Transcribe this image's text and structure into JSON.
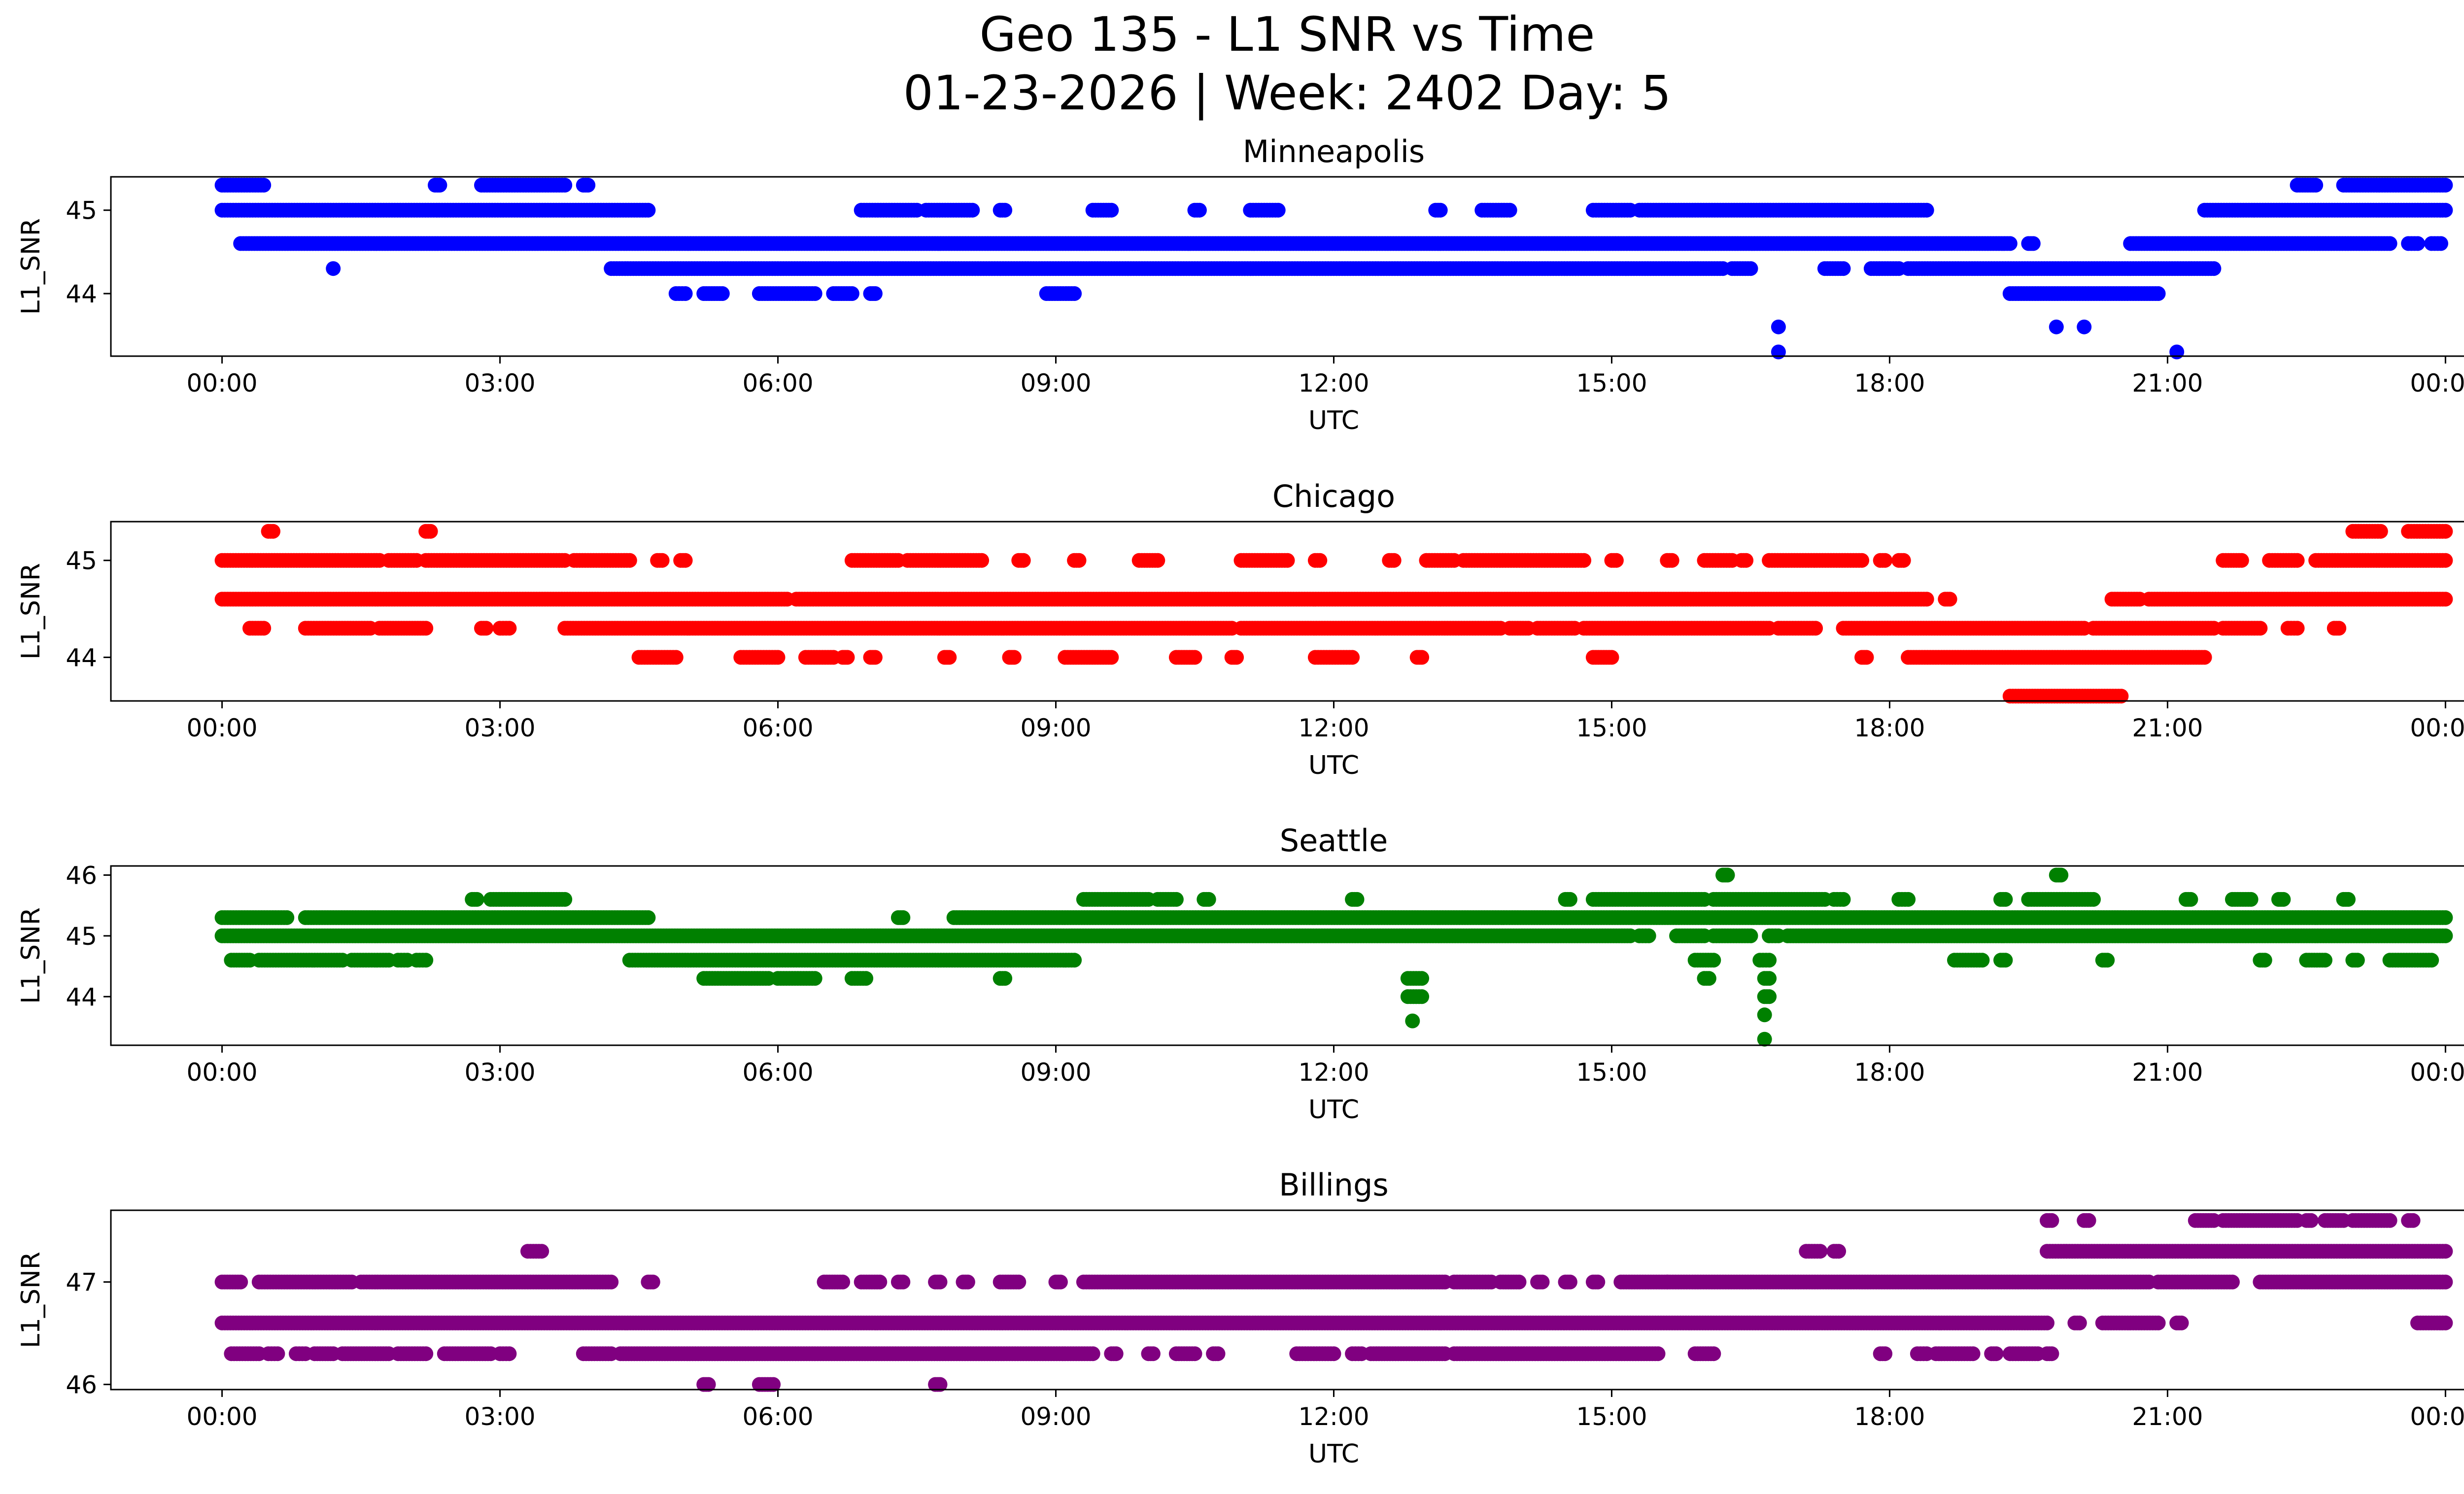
{
  "title": {
    "line1": "Geo 135 - L1 SNR vs Time",
    "line2": "01-23-2026 | Week: 2402 Day: 5"
  },
  "chart_data": [
    {
      "type": "scatter",
      "title": "Minneapolis",
      "xlabel": "UTC",
      "ylabel": "L1_SNR",
      "color": "#0000ff",
      "xlim": [
        -1.2,
        25.2
      ],
      "ylim": [
        43.25,
        45.4
      ],
      "xticks": [
        "00:00",
        "03:00",
        "06:00",
        "09:00",
        "12:00",
        "15:00",
        "18:00",
        "21:00",
        "00:00"
      ],
      "yticks": [
        44,
        45
      ],
      "runs": [
        {
          "y": 45.3,
          "s": [
            [
              0,
              0.45
            ],
            [
              2.3,
              2.35
            ],
            [
              2.8,
              3.7
            ],
            [
              3.9,
              3.95
            ],
            [
              22.4,
              22.6
            ],
            [
              22.9,
              24
            ]
          ]
        },
        {
          "y": 45.0,
          "s": [
            [
              0,
              4.6
            ],
            [
              6.9,
              7.5
            ],
            [
              7.6,
              8.1
            ],
            [
              8.4,
              8.45
            ],
            [
              9.4,
              9.6
            ],
            [
              10.5,
              10.55
            ],
            [
              11.1,
              11.4
            ],
            [
              13.1,
              13.15
            ],
            [
              13.6,
              13.9
            ],
            [
              14.8,
              15.2
            ],
            [
              15.3,
              18.4
            ],
            [
              21.4,
              24
            ]
          ]
        },
        {
          "y": 44.6,
          "s": [
            [
              0.2,
              19.3
            ],
            [
              19.5,
              19.55
            ],
            [
              20.6,
              23.4
            ],
            [
              23.6,
              23.7
            ],
            [
              23.85,
              23.95
            ]
          ]
        },
        {
          "y": 44.3,
          "s": [
            [
              4.2,
              16.2
            ],
            [
              16.3,
              16.5
            ],
            [
              17.3,
              17.5
            ],
            [
              17.8,
              18.1
            ],
            [
              18.2,
              21.5
            ]
          ]
        },
        {
          "y": 44.0,
          "s": [
            [
              4.9,
              5.0
            ],
            [
              5.2,
              5.4
            ],
            [
              5.8,
              6.4
            ],
            [
              6.6,
              6.8
            ],
            [
              7.0,
              7.05
            ],
            [
              8.9,
              9.2
            ],
            [
              19.3,
              20.9
            ]
          ]
        }
      ],
      "points": [
        [
          1.2,
          44.3
        ],
        [
          16.8,
          43.6
        ],
        [
          16.8,
          43.3
        ],
        [
          19.8,
          43.6
        ],
        [
          20.1,
          43.6
        ],
        [
          21.1,
          43.3
        ]
      ]
    },
    {
      "type": "scatter",
      "title": "Chicago",
      "xlabel": "UTC",
      "ylabel": "L1_SNR",
      "color": "#ff0000",
      "xlim": [
        -1.2,
        25.2
      ],
      "ylim": [
        43.55,
        45.4
      ],
      "xticks": [
        "00:00",
        "03:00",
        "06:00",
        "09:00",
        "12:00",
        "15:00",
        "18:00",
        "21:00",
        "00:00"
      ],
      "yticks": [
        44,
        45
      ],
      "runs": [
        {
          "y": 45.3,
          "s": [
            [
              0.5,
              0.55
            ],
            [
              2.2,
              2.25
            ],
            [
              23.0,
              23.3
            ],
            [
              23.6,
              24
            ]
          ]
        },
        {
          "y": 45.0,
          "s": [
            [
              0,
              1.7
            ],
            [
              1.8,
              2.1
            ],
            [
              2.2,
              3.7
            ],
            [
              3.8,
              4.4
            ],
            [
              4.7,
              4.75
            ],
            [
              4.95,
              5.0
            ],
            [
              6.8,
              7.3
            ],
            [
              7.4,
              8.2
            ],
            [
              8.6,
              8.65
            ],
            [
              9.2,
              9.25
            ],
            [
              9.9,
              10.1
            ],
            [
              11.0,
              11.5
            ],
            [
              11.8,
              11.85
            ],
            [
              12.6,
              12.65
            ],
            [
              13.0,
              13.3
            ],
            [
              13.4,
              14.7
            ],
            [
              15.0,
              15.05
            ],
            [
              15.6,
              15.65
            ],
            [
              16.0,
              16.3
            ],
            [
              16.4,
              16.45
            ],
            [
              16.7,
              17.7
            ],
            [
              17.9,
              17.95
            ],
            [
              18.1,
              18.15
            ],
            [
              21.6,
              21.8
            ],
            [
              22.1,
              22.4
            ],
            [
              22.6,
              24
            ]
          ]
        },
        {
          "y": 44.6,
          "s": [
            [
              0,
              6.1
            ],
            [
              6.2,
              18.4
            ],
            [
              18.6,
              18.65
            ],
            [
              20.4,
              20.7
            ],
            [
              20.8,
              24
            ]
          ]
        },
        {
          "y": 44.3,
          "s": [
            [
              0.3,
              0.45
            ],
            [
              0.9,
              1.6
            ],
            [
              1.7,
              2.2
            ],
            [
              2.8,
              2.85
            ],
            [
              3.0,
              3.1
            ],
            [
              3.7,
              10.9
            ],
            [
              11.0,
              13.8
            ],
            [
              13.9,
              14.1
            ],
            [
              14.2,
              14.6
            ],
            [
              14.7,
              16.7
            ],
            [
              16.8,
              17.2
            ],
            [
              17.5,
              20.1
            ],
            [
              20.2,
              21.5
            ],
            [
              21.6,
              22.0
            ],
            [
              22.3,
              22.4
            ],
            [
              22.8,
              22.85
            ]
          ]
        },
        {
          "y": 44.0,
          "s": [
            [
              4.5,
              4.9
            ],
            [
              5.6,
              6.0
            ],
            [
              6.3,
              6.6
            ],
            [
              6.7,
              6.75
            ],
            [
              7.0,
              7.05
            ],
            [
              7.8,
              7.85
            ],
            [
              8.5,
              8.55
            ],
            [
              9.1,
              9.6
            ],
            [
              10.3,
              10.5
            ],
            [
              10.9,
              10.95
            ],
            [
              11.8,
              12.2
            ],
            [
              12.9,
              12.95
            ],
            [
              14.8,
              15.0
            ],
            [
              17.7,
              17.75
            ],
            [
              18.2,
              21.4
            ]
          ]
        },
        {
          "y": 43.6,
          "s": [
            [
              19.3,
              20.5
            ]
          ]
        }
      ],
      "points": []
    },
    {
      "type": "scatter",
      "title": "Seattle",
      "xlabel": "UTC",
      "ylabel": "L1_SNR",
      "color": "#008000",
      "xlim": [
        -1.2,
        25.2
      ],
      "ylim": [
        43.2,
        46.15
      ],
      "xticks": [
        "00:00",
        "03:00",
        "06:00",
        "09:00",
        "12:00",
        "15:00",
        "18:00",
        "21:00",
        "00:00"
      ],
      "yticks": [
        44,
        45,
        46
      ],
      "runs": [
        {
          "y": 46.0,
          "s": [
            [
              16.2,
              16.25
            ],
            [
              19.8,
              19.85
            ]
          ]
        },
        {
          "y": 45.6,
          "s": [
            [
              2.7,
              2.75
            ],
            [
              2.9,
              3.7
            ],
            [
              9.3,
              10.0
            ],
            [
              10.1,
              10.3
            ],
            [
              10.6,
              10.65
            ],
            [
              12.2,
              12.25
            ],
            [
              14.5,
              14.55
            ],
            [
              14.8,
              16.0
            ],
            [
              16.1,
              17.3
            ],
            [
              17.4,
              17.5
            ],
            [
              18.1,
              18.2
            ],
            [
              19.2,
              19.25
            ],
            [
              19.5,
              20.2
            ],
            [
              21.2,
              21.25
            ],
            [
              21.7,
              21.9
            ],
            [
              22.2,
              22.25
            ],
            [
              22.9,
              22.95
            ]
          ]
        },
        {
          "y": 45.3,
          "s": [
            [
              0,
              0.7
            ],
            [
              0.9,
              4.6
            ],
            [
              7.3,
              7.35
            ],
            [
              7.9,
              24
            ]
          ]
        },
        {
          "y": 45.0,
          "s": [
            [
              0,
              15.2
            ],
            [
              15.3,
              15.4
            ],
            [
              15.7,
              16.0
            ],
            [
              16.1,
              16.5
            ],
            [
              16.7,
              16.8
            ],
            [
              16.9,
              24
            ]
          ]
        },
        {
          "y": 44.6,
          "s": [
            [
              0.1,
              0.3
            ],
            [
              0.4,
              1.3
            ],
            [
              1.4,
              1.8
            ],
            [
              1.9,
              2.0
            ],
            [
              2.1,
              2.2
            ],
            [
              4.4,
              9.2
            ],
            [
              15.9,
              16.1
            ],
            [
              16.6,
              16.7
            ],
            [
              18.7,
              19.0
            ],
            [
              19.2,
              19.25
            ],
            [
              20.3,
              20.35
            ],
            [
              22.0,
              22.05
            ],
            [
              22.5,
              22.7
            ],
            [
              23.0,
              23.05
            ],
            [
              23.4,
              23.85
            ]
          ]
        },
        {
          "y": 44.3,
          "s": [
            [
              5.2,
              5.9
            ],
            [
              6.0,
              6.4
            ],
            [
              6.8,
              6.95
            ],
            [
              8.4,
              8.45
            ],
            [
              12.8,
              12.95
            ],
            [
              16.0,
              16.05
            ],
            [
              16.65,
              16.7
            ]
          ]
        },
        {
          "y": 44.0,
          "s": [
            [
              12.8,
              12.95
            ],
            [
              16.65,
              16.7
            ]
          ]
        }
      ],
      "points": [
        [
          12.85,
          43.6
        ],
        [
          16.65,
          43.7
        ],
        [
          16.65,
          43.3
        ]
      ]
    },
    {
      "type": "scatter",
      "title": "Billings",
      "xlabel": "UTC",
      "ylabel": "L1_SNR",
      "color": "#800080",
      "xlim": [
        -1.2,
        25.2
      ],
      "ylim": [
        45.95,
        47.7
      ],
      "xticks": [
        "00:00",
        "03:00",
        "06:00",
        "09:00",
        "12:00",
        "15:00",
        "18:00",
        "21:00",
        "00:00"
      ],
      "yticks": [
        46,
        47
      ],
      "runs": [
        {
          "y": 47.6,
          "s": [
            [
              19.7,
              19.75
            ],
            [
              20.1,
              20.15
            ],
            [
              21.3,
              21.5
            ],
            [
              21.6,
              22.4
            ],
            [
              22.5,
              22.55
            ],
            [
              22.7,
              22.9
            ],
            [
              23.0,
              23.4
            ],
            [
              23.6,
              23.65
            ]
          ]
        },
        {
          "y": 47.3,
          "s": [
            [
              3.3,
              3.45
            ],
            [
              17.1,
              17.25
            ],
            [
              17.4,
              17.45
            ],
            [
              19.7,
              24
            ]
          ]
        },
        {
          "y": 47.0,
          "s": [
            [
              0,
              0.2
            ],
            [
              0.4,
              1.4
            ],
            [
              1.5,
              4.2
            ],
            [
              4.6,
              4.65
            ],
            [
              6.5,
              6.7
            ],
            [
              6.9,
              7.1
            ],
            [
              7.3,
              7.35
            ],
            [
              7.7,
              7.75
            ],
            [
              8.0,
              8.05
            ],
            [
              8.4,
              8.6
            ],
            [
              9.0,
              9.05
            ],
            [
              9.3,
              13.2
            ],
            [
              13.3,
              13.7
            ],
            [
              13.8,
              14.0
            ],
            [
              14.2,
              14.25
            ],
            [
              14.5,
              14.55
            ],
            [
              14.8,
              14.85
            ],
            [
              15.1,
              15.6
            ],
            [
              15.6,
              20.8
            ],
            [
              20.9,
              21.7
            ],
            [
              22.0,
              24
            ]
          ]
        },
        {
          "y": 46.6,
          "s": [
            [
              0,
              19.7
            ],
            [
              20.0,
              20.05
            ],
            [
              20.3,
              20.9
            ],
            [
              21.1,
              21.15
            ],
            [
              23.7,
              24
            ]
          ]
        },
        {
          "y": 46.3,
          "s": [
            [
              0.1,
              0.4
            ],
            [
              0.5,
              0.6
            ],
            [
              0.8,
              0.9
            ],
            [
              1.0,
              1.2
            ],
            [
              1.3,
              1.8
            ],
            [
              1.9,
              2.2
            ],
            [
              2.4,
              2.9
            ],
            [
              3.0,
              3.1
            ],
            [
              3.9,
              4.2
            ],
            [
              4.3,
              9.4
            ],
            [
              9.6,
              9.65
            ],
            [
              10.0,
              10.05
            ],
            [
              10.3,
              10.5
            ],
            [
              10.7,
              10.75
            ],
            [
              11.6,
              12.0
            ],
            [
              12.2,
              12.3
            ],
            [
              12.4,
              13.2
            ],
            [
              13.3,
              15.5
            ],
            [
              15.9,
              16.1
            ],
            [
              17.9,
              17.95
            ],
            [
              18.3,
              18.4
            ],
            [
              18.5,
              18.9
            ],
            [
              19.1,
              19.15
            ],
            [
              19.3,
              19.6
            ],
            [
              19.7,
              19.75
            ]
          ]
        },
        {
          "y": 46.0,
          "s": [
            [
              5.2,
              5.25
            ],
            [
              5.8,
              5.95
            ],
            [
              7.7,
              7.75
            ]
          ]
        }
      ],
      "points": []
    }
  ]
}
